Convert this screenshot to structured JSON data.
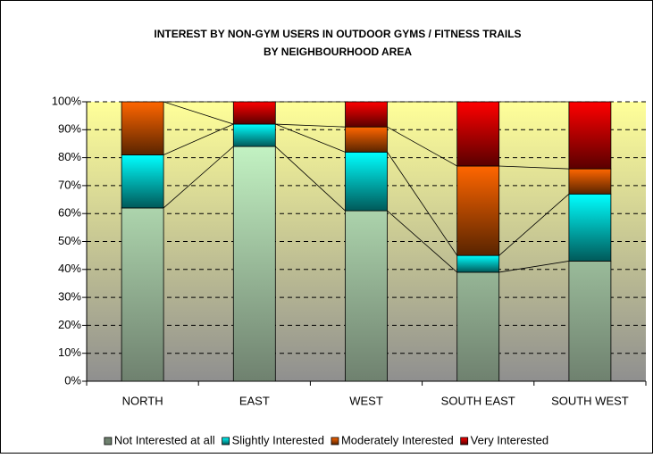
{
  "chart_data": {
    "type": "stacked_bar_100",
    "title": "INTEREST BY NON-GYM USERS IN OUTDOOR GYMS / FITNESS TRAILS",
    "subtitle": "BY NEIGHBOURHOOD AREA",
    "categories": [
      "NORTH",
      "EAST",
      "WEST",
      "SOUTH EAST",
      "SOUTH WEST"
    ],
    "series": [
      {
        "name": "Not Interested at all",
        "color": "#ccffcc",
        "values": [
          62,
          84,
          61,
          39,
          43
        ]
      },
      {
        "name": "Slightly Interested",
        "color": "#00ffff",
        "values": [
          19,
          8,
          21,
          6,
          24
        ]
      },
      {
        "name": "Moderately Interested",
        "color": "#ff6600",
        "values": [
          19,
          0,
          9,
          32,
          9
        ]
      },
      {
        "name": "Very Interested",
        "color": "#ff0000",
        "values": [
          0,
          8,
          9,
          23,
          24
        ]
      }
    ],
    "ylim": [
      0,
      100
    ],
    "yticks": [
      {
        "value": 0,
        "label": "0%"
      },
      {
        "value": 10,
        "label": "10%"
      },
      {
        "value": 20,
        "label": "20%"
      },
      {
        "value": 30,
        "label": "30%"
      },
      {
        "value": 40,
        "label": "40%"
      },
      {
        "value": 50,
        "label": "50%"
      },
      {
        "value": 60,
        "label": "60%"
      },
      {
        "value": 70,
        "label": "70%"
      },
      {
        "value": 80,
        "label": "80%"
      },
      {
        "value": 90,
        "label": "90%"
      },
      {
        "value": 100,
        "label": "100%"
      }
    ],
    "grid": true,
    "series_lines": true,
    "legend": "bottom"
  }
}
